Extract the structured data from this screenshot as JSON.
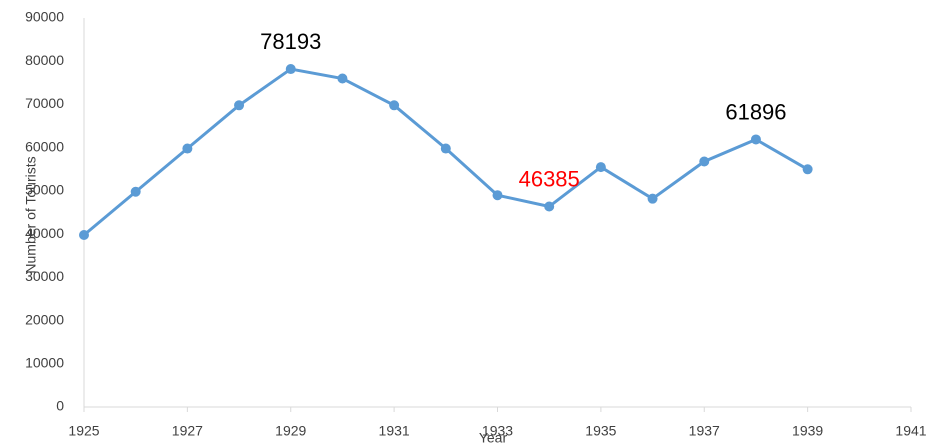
{
  "chart_data": {
    "type": "line",
    "x_label": "Year",
    "y_label": "Number of Tourists",
    "x": [
      1925,
      1926,
      1927,
      1928,
      1929,
      1930,
      1931,
      1932,
      1933,
      1934,
      1935,
      1936,
      1937,
      1938,
      1939
    ],
    "series": [
      {
        "name": "Tourists",
        "color": "#5b9bd5",
        "values": [
          39800,
          49800,
          59800,
          69800,
          78193,
          76000,
          69800,
          59800,
          49000,
          46385,
          55500,
          48200,
          56800,
          61896,
          55000
        ],
        "value_labels": [
          null,
          null,
          null,
          null,
          "78193",
          null,
          null,
          null,
          null,
          "46385",
          null,
          null,
          null,
          "61896",
          null
        ],
        "value_label_colors": [
          null,
          null,
          null,
          null,
          "#000000",
          null,
          null,
          null,
          null,
          "#ff0000",
          null,
          null,
          null,
          "#000000",
          null
        ]
      }
    ],
    "xlim": [
      1925,
      1941
    ],
    "xticks": [
      1925,
      1927,
      1929,
      1931,
      1933,
      1935,
      1937,
      1939,
      1941
    ],
    "ylim": [
      0,
      90000
    ],
    "yticks": [
      0,
      10000,
      20000,
      30000,
      40000,
      50000,
      60000,
      70000,
      80000,
      90000
    ],
    "grid": false
  }
}
